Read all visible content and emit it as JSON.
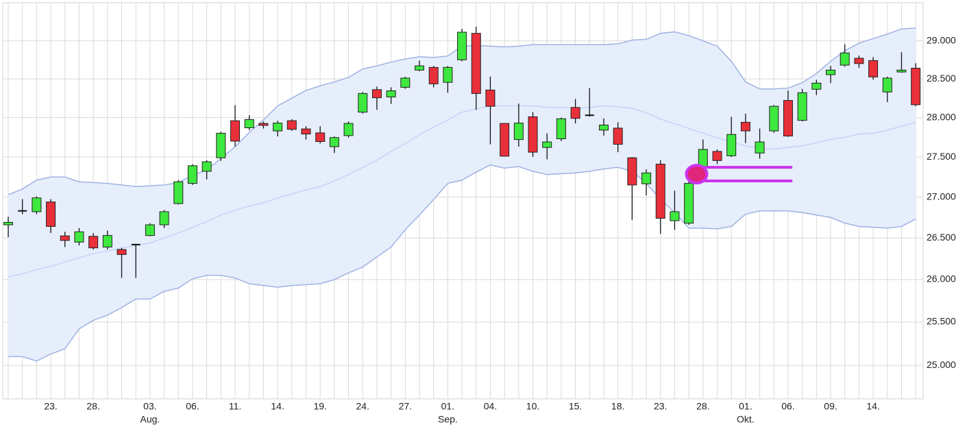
{
  "chart_data": {
    "type": "candlestick",
    "categories": [
      null,
      null,
      null,
      "23.",
      null,
      null,
      "28.",
      null,
      null,
      null,
      "03.",
      null,
      null,
      "06.",
      null,
      null,
      "11.",
      null,
      null,
      "14.",
      null,
      null,
      "19.",
      null,
      null,
      "24.",
      null,
      null,
      "27.",
      null,
      null,
      "01.",
      null,
      null,
      "04.",
      null,
      null,
      "10.",
      null,
      null,
      "15.",
      null,
      null,
      "18.",
      null,
      null,
      "23.",
      null,
      null,
      "28.",
      null,
      null,
      "01.",
      null,
      null,
      "06.",
      null,
      null,
      "09.",
      null,
      null,
      "14.",
      null,
      null,
      null
    ],
    "months": [
      null,
      null,
      null,
      null,
      null,
      null,
      null,
      null,
      null,
      null,
      "Aug.",
      null,
      null,
      null,
      null,
      null,
      null,
      null,
      null,
      null,
      null,
      null,
      null,
      null,
      null,
      null,
      null,
      null,
      null,
      null,
      null,
      "Sep.",
      null,
      null,
      null,
      null,
      null,
      null,
      null,
      null,
      null,
      null,
      null,
      null,
      null,
      null,
      null,
      null,
      null,
      null,
      null,
      null,
      "Okt.",
      null,
      null,
      null,
      null,
      null,
      null,
      null,
      null,
      null,
      null,
      null,
      null
    ],
    "open": [
      26660,
      26830,
      26820,
      26940,
      26525,
      26450,
      26520,
      26390,
      26360,
      26420,
      26530,
      26660,
      26920,
      27170,
      27320,
      27490,
      27960,
      27870,
      27925,
      27830,
      27960,
      27855,
      27805,
      27630,
      27770,
      28070,
      28360,
      28265,
      28390,
      28615,
      28650,
      28455,
      28750,
      29100,
      28355,
      27925,
      27720,
      28010,
      27620,
      27730,
      28130,
      28030,
      27840,
      27865,
      27490,
      27165,
      27410,
      26710,
      26680,
      27370,
      27570,
      27515,
      27940,
      27550,
      27830,
      28220,
      27965,
      28365,
      28555,
      28680,
      28770,
      28740,
      28330,
      28590,
      28640
    ],
    "high": [
      26760,
      26975,
      27010,
      26975,
      26575,
      26620,
      26560,
      26590,
      26380,
      26430,
      26680,
      26840,
      27210,
      27410,
      27460,
      27820,
      28160,
      28030,
      27950,
      27960,
      27980,
      27890,
      27890,
      27760,
      27950,
      28330,
      28400,
      28390,
      28530,
      28740,
      28670,
      28670,
      29160,
      29190,
      28530,
      27925,
      28180,
      28070,
      27800,
      28000,
      28240,
      28380,
      27990,
      27940,
      27500,
      27345,
      27460,
      27080,
      27220,
      27720,
      27595,
      28010,
      28050,
      27860,
      28160,
      28350,
      28370,
      28490,
      28670,
      28955,
      28805,
      28785,
      28530,
      28850,
      28705
    ],
    "low": [
      26510,
      26790,
      26790,
      26560,
      26390,
      26410,
      26360,
      26360,
      26020,
      26020,
      26520,
      26620,
      26910,
      27150,
      27220,
      27450,
      27630,
      27840,
      27860,
      27760,
      27830,
      27720,
      27670,
      27550,
      27745,
      28050,
      28100,
      28175,
      28370,
      28600,
      28390,
      28320,
      28730,
      28100,
      27660,
      27505,
      27630,
      27500,
      27470,
      27700,
      27925,
      28010,
      27770,
      27560,
      26720,
      27020,
      26550,
      26600,
      26660,
      27350,
      27410,
      27500,
      27675,
      27480,
      27805,
      27755,
      27950,
      28290,
      28445,
      28660,
      28645,
      28490,
      28200,
      28580,
      28145
    ],
    "close": [
      26690,
      26830,
      26990,
      26640,
      26470,
      26575,
      26380,
      26530,
      26300,
      26420,
      26660,
      26820,
      27190,
      27390,
      27440,
      27800,
      27700,
      27975,
      27900,
      27930,
      27850,
      27790,
      27695,
      27745,
      27925,
      28310,
      28255,
      28345,
      28510,
      28670,
      28435,
      28650,
      29115,
      28310,
      28145,
      27510,
      27930,
      27560,
      27690,
      27985,
      27990,
      28030,
      27905,
      27660,
      27150,
      27300,
      26740,
      26820,
      27170,
      27595,
      27455,
      27785,
      27830,
      27690,
      28145,
      27765,
      28320,
      28445,
      28615,
      28840,
      28700,
      28525,
      28510,
      28615,
      28165
    ],
    "up_color": "#3ee83e",
    "down_color": "#e8303a",
    "bands": {
      "upper": [
        27030,
        27100,
        27210,
        27250,
        27250,
        27190,
        27180,
        27170,
        27150,
        27130,
        27140,
        27150,
        27180,
        27270,
        27340,
        27480,
        27630,
        27810,
        27970,
        28150,
        28250,
        28350,
        28410,
        28460,
        28520,
        28630,
        28670,
        28720,
        28760,
        28790,
        28780,
        28800,
        28930,
        28940,
        28930,
        28920,
        28930,
        28950,
        28950,
        28950,
        28950,
        28950,
        28950,
        28960,
        29010,
        29020,
        29100,
        29120,
        29070,
        29000,
        28930,
        28730,
        28460,
        28370,
        28370,
        28380,
        28450,
        28570,
        28730,
        28870,
        28970,
        29030,
        29090,
        29160,
        29170
      ],
      "middle": [
        26030,
        26070,
        26120,
        26160,
        26210,
        26260,
        26310,
        26340,
        26380,
        26410,
        26440,
        26500,
        26560,
        26630,
        26700,
        26780,
        26840,
        26890,
        26930,
        26990,
        27040,
        27090,
        27130,
        27200,
        27280,
        27370,
        27460,
        27570,
        27670,
        27780,
        27880,
        27970,
        28070,
        28110,
        28150,
        28150,
        28150,
        28150,
        28130,
        28130,
        28120,
        28130,
        28150,
        28140,
        28120,
        28060,
        27980,
        27920,
        27860,
        27800,
        27740,
        27690,
        27640,
        27610,
        27600,
        27620,
        27640,
        27680,
        27720,
        27750,
        27790,
        27800,
        27840,
        27890,
        27940
      ],
      "lower": [
        25100,
        25100,
        25050,
        25130,
        25190,
        25420,
        25520,
        25580,
        25670,
        25770,
        25770,
        25860,
        25900,
        26010,
        26050,
        26050,
        26020,
        25950,
        25930,
        25910,
        25930,
        25940,
        25950,
        26000,
        26080,
        26150,
        26270,
        26390,
        26600,
        26780,
        26970,
        27170,
        27210,
        27310,
        27400,
        27360,
        27380,
        27320,
        27280,
        27290,
        27300,
        27320,
        27350,
        27370,
        27320,
        27170,
        26970,
        26810,
        26620,
        26620,
        26610,
        26640,
        26790,
        26830,
        26830,
        26830,
        26810,
        26780,
        26750,
        26680,
        26640,
        26630,
        26620,
        26640,
        26730
      ],
      "fill": "#e6eefc",
      "line_color": "#9fb2e2",
      "middle_color": "#c3d4f5"
    },
    "highlight": {
      "levels": [
        27370,
        27200
      ],
      "color": "#cc33ee",
      "dot_color": "#e0257a"
    },
    "log_scale": true,
    "ylim": [
      24620,
      29510
    ],
    "yticks": [
      {
        "value": 25000,
        "label": "25.000"
      },
      {
        "value": 25500,
        "label": "25.500"
      },
      {
        "value": 26000,
        "label": "26.000"
      },
      {
        "value": 26500,
        "label": "26.500"
      },
      {
        "value": 27000,
        "label": "27.000"
      },
      {
        "value": 27500,
        "label": "27.500"
      },
      {
        "value": 28000,
        "label": "28.000"
      },
      {
        "value": 28500,
        "label": "28.500"
      },
      {
        "value": 29000,
        "label": "29.000"
      }
    ],
    "grid": true
  }
}
